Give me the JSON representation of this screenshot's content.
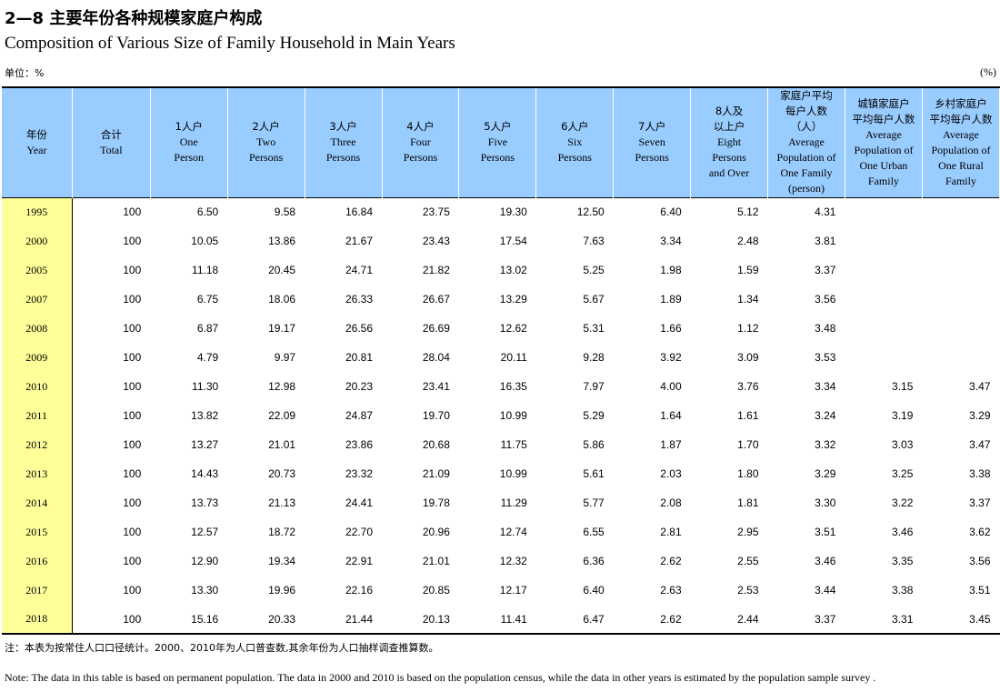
{
  "title_cn": "2—8 主要年份各种规模家庭户构成",
  "title_en": "Composition of Various Size of Family Household in Main Years",
  "unit_left": "单位：%",
  "unit_right": "(%)",
  "headers": [
    {
      "cn": "年份",
      "en": [
        "Year"
      ]
    },
    {
      "cn": "合计",
      "en": [
        "Total"
      ]
    },
    {
      "cn": "1人户",
      "en": [
        "One",
        "Person"
      ]
    },
    {
      "cn": "2人户",
      "en": [
        "Two",
        "Persons"
      ]
    },
    {
      "cn": "3人户",
      "en": [
        "Three",
        "Persons"
      ]
    },
    {
      "cn": "4人户",
      "en": [
        "Four",
        "Persons"
      ]
    },
    {
      "cn": "5人户",
      "en": [
        "Five",
        "Persons"
      ]
    },
    {
      "cn": "6人户",
      "en": [
        "Six",
        "Persons"
      ]
    },
    {
      "cn": "7人户",
      "en": [
        "Seven",
        "Persons"
      ]
    },
    {
      "cn": "8人及\n以上户",
      "en": [
        "Eight",
        "Persons",
        "and Over"
      ]
    },
    {
      "cn": "家庭户平均\n每户人数\n（人）",
      "en": [
        "Average",
        "Population of",
        "One Family",
        "(person)"
      ]
    },
    {
      "cn": "城镇家庭户\n平均每户人数",
      "en": [
        "Average",
        "Population of",
        "One Urban",
        "Family"
      ]
    },
    {
      "cn": "乡村家庭户\n平均每户人数",
      "en": [
        "Average",
        "Population of",
        "One Rural",
        "Family"
      ]
    }
  ],
  "rows": [
    {
      "year": "1995",
      "total": "100",
      "values": [
        "6.50",
        "9.58",
        "16.84",
        "23.75",
        "19.30",
        "12.50",
        "6.40",
        "5.12",
        "4.31",
        "",
        ""
      ]
    },
    {
      "year": "2000",
      "total": "100",
      "values": [
        "10.05",
        "13.86",
        "21.67",
        "23.43",
        "17.54",
        "7.63",
        "3.34",
        "2.48",
        "3.81",
        "",
        ""
      ]
    },
    {
      "year": "2005",
      "total": "100",
      "values": [
        "11.18",
        "20.45",
        "24.71",
        "21.82",
        "13.02",
        "5.25",
        "1.98",
        "1.59",
        "3.37",
        "",
        ""
      ]
    },
    {
      "year": "2007",
      "total": "100",
      "values": [
        "6.75",
        "18.06",
        "26.33",
        "26.67",
        "13.29",
        "5.67",
        "1.89",
        "1.34",
        "3.56",
        "",
        ""
      ]
    },
    {
      "year": "2008",
      "total": "100",
      "values": [
        "6.87",
        "19.17",
        "26.56",
        "26.69",
        "12.62",
        "5.31",
        "1.66",
        "1.12",
        "3.48",
        "",
        ""
      ]
    },
    {
      "year": "2009",
      "total": "100",
      "values": [
        "4.79",
        "9.97",
        "20.81",
        "28.04",
        "20.11",
        "9.28",
        "3.92",
        "3.09",
        "3.53",
        "",
        ""
      ]
    },
    {
      "year": "2010",
      "total": "100",
      "values": [
        "11.30",
        "12.98",
        "20.23",
        "23.41",
        "16.35",
        "7.97",
        "4.00",
        "3.76",
        "3.34",
        "3.15",
        "3.47"
      ]
    },
    {
      "year": "2011",
      "total": "100",
      "values": [
        "13.82",
        "22.09",
        "24.87",
        "19.70",
        "10.99",
        "5.29",
        "1.64",
        "1.61",
        "3.24",
        "3.19",
        "3.29"
      ]
    },
    {
      "year": "2012",
      "total": "100",
      "values": [
        "13.27",
        "21.01",
        "23.86",
        "20.68",
        "11.75",
        "5.86",
        "1.87",
        "1.70",
        "3.32",
        "3.03",
        "3.47"
      ]
    },
    {
      "year": "2013",
      "total": "100",
      "values": [
        "14.43",
        "20.73",
        "23.32",
        "21.09",
        "10.99",
        "5.61",
        "2.03",
        "1.80",
        "3.29",
        "3.25",
        "3.38"
      ]
    },
    {
      "year": "2014",
      "total": "100",
      "values": [
        "13.73",
        "21.13",
        "24.41",
        "19.78",
        "11.29",
        "5.77",
        "2.08",
        "1.81",
        "3.30",
        "3.22",
        "3.37"
      ]
    },
    {
      "year": "2015",
      "total": "100",
      "values": [
        "12.57",
        "18.72",
        "22.70",
        "20.96",
        "12.74",
        "6.55",
        "2.81",
        "2.95",
        "3.51",
        "3.46",
        "3.62"
      ]
    },
    {
      "year": "2016",
      "total": "100",
      "values": [
        "12.90",
        "19.34",
        "22.91",
        "21.01",
        "12.32",
        "6.36",
        "2.62",
        "2.55",
        "3.46",
        "3.35",
        "3.56"
      ]
    },
    {
      "year": "2017",
      "total": "100",
      "values": [
        "13.30",
        "19.96",
        "22.16",
        "20.85",
        "12.17",
        "6.40",
        "2.63",
        "2.53",
        "3.44",
        "3.38",
        "3.51"
      ]
    },
    {
      "year": "2018",
      "total": "100",
      "values": [
        "15.16",
        "20.33",
        "21.44",
        "20.13",
        "11.41",
        "6.47",
        "2.62",
        "2.44",
        "3.37",
        "3.31",
        "3.45"
      ]
    }
  ],
  "note_cn": "注：本表为按常住人口口径统计。2000、2010年为人口普查数,其余年份为人口抽样调查推算数。",
  "note_en": "Note:  The data in this table is based on permanent population. The data in 2000 and 2010 is based on the population census, while the data in other years is estimated by the population sample survey .",
  "colors": {
    "header_bg": "#99ccff",
    "year_bg": "#ffff99"
  }
}
